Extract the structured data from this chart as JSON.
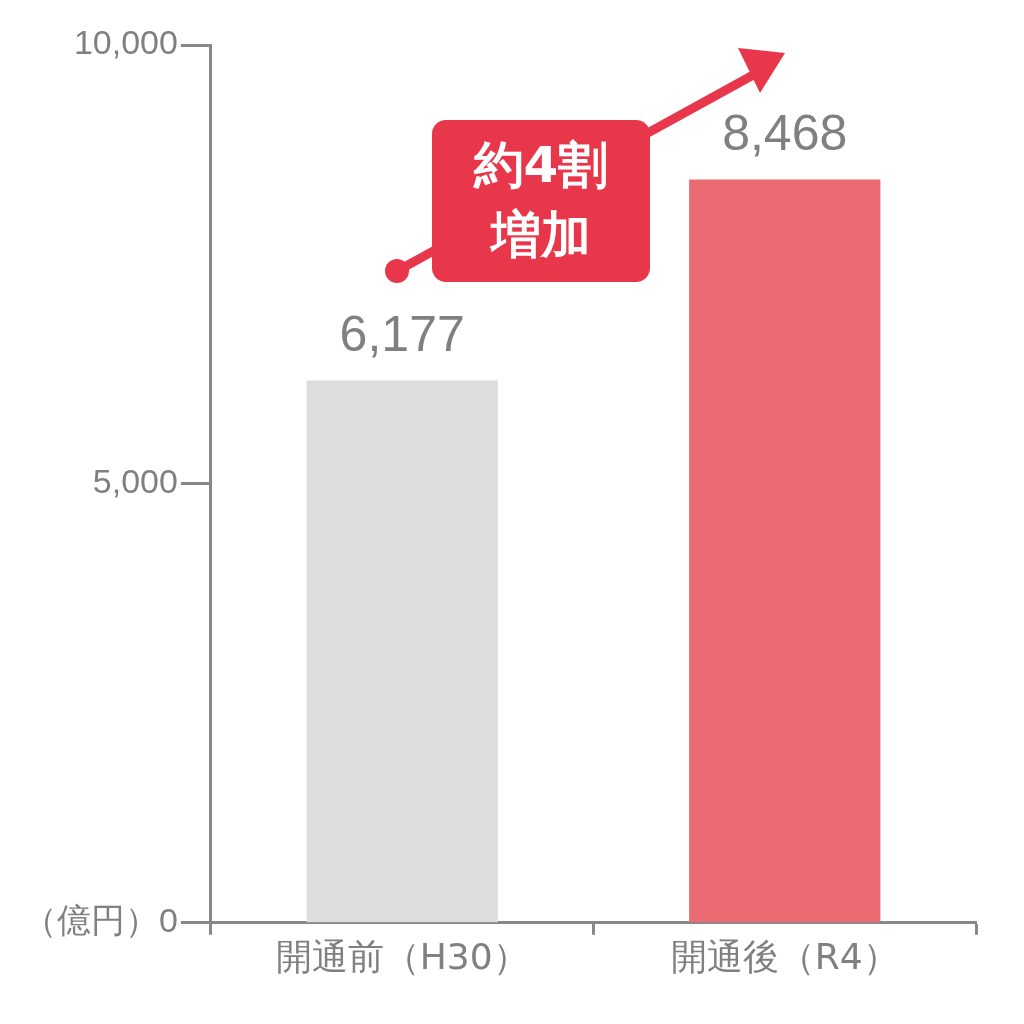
{
  "chart_data": {
    "type": "bar",
    "categories": [
      "開通前（H30）",
      "開通後（R4）"
    ],
    "values": [
      6177,
      8468
    ],
    "colors": [
      "#dcdedd",
      "#eb6b73"
    ],
    "ylim": [
      0,
      10000
    ],
    "yticks": [
      {
        "value": 0,
        "label": "（億円）0"
      },
      {
        "value": 5000,
        "label": "5,000"
      },
      {
        "value": 10000,
        "label": "10,000"
      }
    ],
    "grid": false,
    "legend": false,
    "value_labels": [
      "6,177",
      "8,468"
    ],
    "annotations": [
      "約4割増加"
    ]
  }
}
